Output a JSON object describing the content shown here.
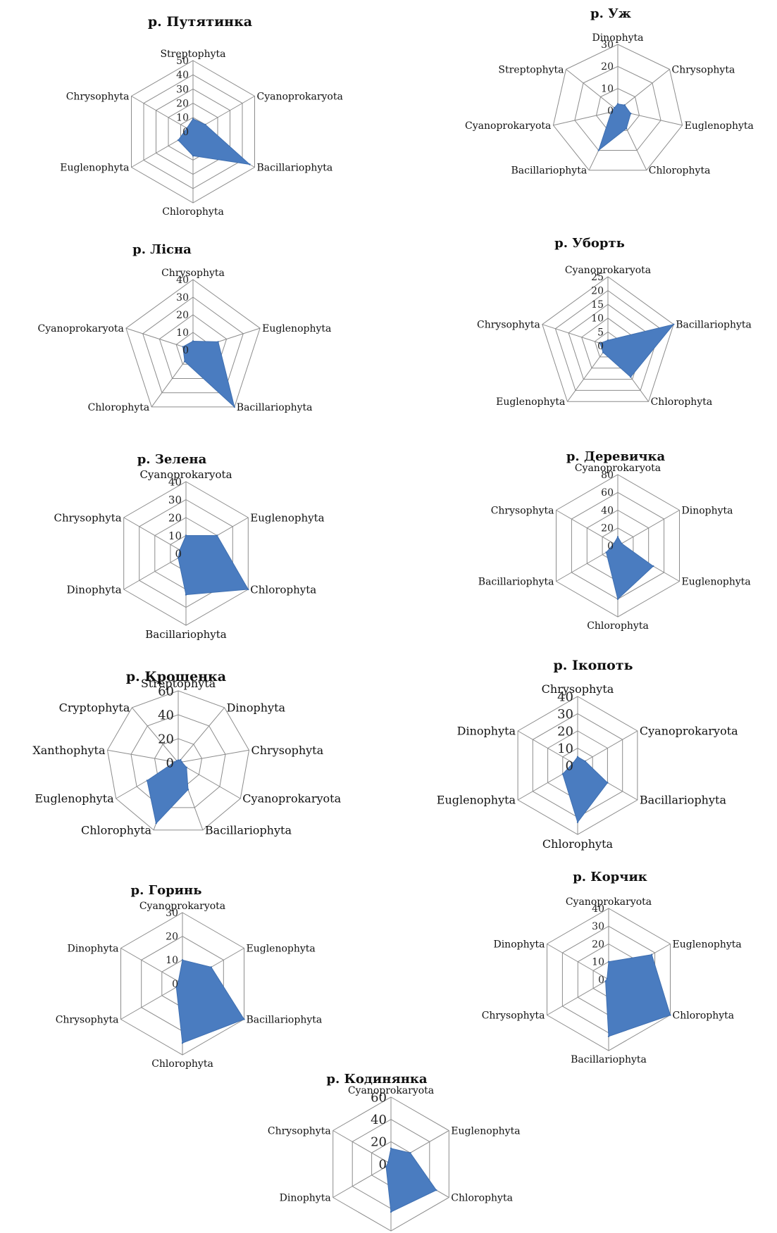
{
  "chart_data": [
    {
      "type": "radar",
      "title": "р. Путятинка",
      "axes": [
        "Streptophyta",
        "Cyanoprokaryota",
        "Bacillariophyta",
        "Chlorophyta",
        "Euglenophyta",
        "Chrysophyta"
      ],
      "ticks": [
        "50",
        "40",
        "30",
        "20",
        "10",
        "0"
      ],
      "range": [
        0,
        50
      ],
      "values": [
        9,
        10,
        46,
        17,
        12,
        5
      ]
    },
    {
      "type": "radar",
      "title": "р. Уж",
      "axes": [
        "Dinophyta",
        "Chrysophyta",
        "Euglenophyta",
        "Chlorophyta",
        "Bacillariophyta",
        "Cyanoprokaryota",
        "Streptophyta"
      ],
      "ticks": [
        "30",
        "20",
        "10",
        "0"
      ],
      "range": [
        0,
        30
      ],
      "values": [
        3,
        4,
        6,
        9,
        20,
        3,
        2
      ]
    },
    {
      "type": "radar",
      "title": "р. Лісна",
      "axes": [
        "Chrysophyta",
        "Euglenophyta",
        "Bacillariophyta",
        "Chlorophyta",
        "Cyanoprokaryota"
      ],
      "ticks": [
        "40",
        "30",
        "20",
        "10",
        "0"
      ],
      "range": [
        0,
        40
      ],
      "values": [
        5,
        15,
        40,
        8,
        6
      ]
    },
    {
      "type": "radar",
      "title": "р. Уборть",
      "axes": [
        "Cyanoprokaryota",
        "Bacillariophyta",
        "Chlorophyta",
        "Euglenophyta",
        "Chrysophyta"
      ],
      "ticks": [
        "25",
        "20",
        "15",
        "10",
        "5",
        "0"
      ],
      "range": [
        0,
        25
      ],
      "values": [
        2,
        25,
        14,
        3,
        3
      ]
    },
    {
      "type": "radar",
      "title": "р. Зелена",
      "axes": [
        "Cyanoprokaryota",
        "Euglenophyta",
        "Chlorophyta",
        "Bacillariophyta",
        "Dinophyta",
        "Chrysophyta"
      ],
      "ticks": [
        "40",
        "30",
        "20",
        "10",
        "0"
      ],
      "range": [
        0,
        40
      ],
      "values": [
        10,
        20,
        40,
        23,
        5,
        4
      ]
    },
    {
      "type": "radar",
      "title": "р. Деревичка",
      "axes": [
        "Cyanoprokaryota",
        "Dinophyta",
        "Euglenophyta",
        "Chlorophyta",
        "Bacillariophyta",
        "Chrysophyta"
      ],
      "ticks": [
        "80",
        "60",
        "40",
        "20",
        "0"
      ],
      "range": [
        0,
        80
      ],
      "values": [
        10,
        5,
        46,
        60,
        15,
        5
      ]
    },
    {
      "type": "radar",
      "title": "р. Крошенка",
      "axes": [
        "Streptophyta",
        "Dinophyta",
        "Chrysophyta",
        "Cyanoprokaryota",
        "Bacillariophyta",
        "Chlorophyta",
        "Euglenophyta",
        "Xanthophyta",
        "Cryptophyta"
      ],
      "ticks": [
        "60",
        "40",
        "20",
        "0"
      ],
      "range": [
        0,
        60
      ],
      "values": [
        2,
        3,
        3,
        8,
        24,
        54,
        30,
        3,
        2
      ]
    },
    {
      "type": "radar",
      "title": "р. Ікопоть",
      "axes": [
        "Chrysophyta",
        "Cyanoprokaryota",
        "Bacillariophyta",
        "Chlorophyta",
        "Euglenophyta",
        "Dinophyta"
      ],
      "ticks": [
        "40",
        "30",
        "20",
        "10",
        "0"
      ],
      "range": [
        0,
        40
      ],
      "values": [
        5,
        5,
        20,
        33,
        10,
        3
      ]
    },
    {
      "type": "radar",
      "title": "р. Горинь",
      "axes": [
        "Cyanoprokaryota",
        "Euglenophyta",
        "Bacillariophyta",
        "Chlorophyta",
        "Chrysophyta",
        "Dinophyta"
      ],
      "ticks": [
        "30",
        "20",
        "10",
        "0"
      ],
      "range": [
        0,
        30
      ],
      "values": [
        10,
        14,
        30,
        25,
        3,
        2
      ]
    },
    {
      "type": "radar",
      "title": "р. Корчик",
      "axes": [
        "Cyanoprokaryota",
        "Euglenophyta",
        "Chlorophyta",
        "Bacillariophyta",
        "Chrysophyta",
        "Dinophyta"
      ],
      "ticks": [
        "40",
        "30",
        "20",
        "10",
        "0"
      ],
      "range": [
        0,
        40
      ],
      "values": [
        10,
        28,
        40,
        32,
        2,
        1
      ]
    },
    {
      "type": "radar",
      "title": "р. Кодинянка",
      "axes": [
        "Cyanoprokaryota",
        "Euglenophyta",
        "Chlorophyta",
        "Bacillariophyta",
        "Dinophyta",
        "Chrysophyta"
      ],
      "ticks": [
        "60",
        "40",
        "20",
        "0"
      ],
      "range": [
        0,
        60
      ],
      "values": [
        14,
        20,
        47,
        43,
        5,
        3
      ]
    }
  ]
}
